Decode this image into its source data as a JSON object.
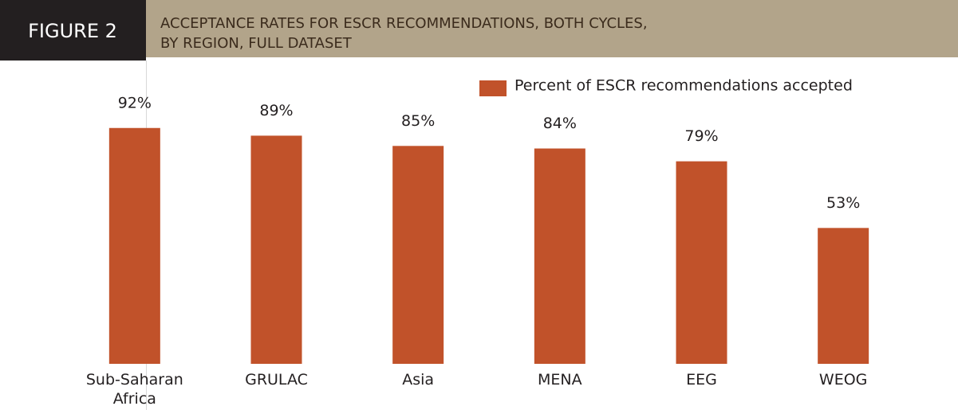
{
  "figure_label": "FIGURE 2",
  "chart_data": {
    "type": "bar",
    "title": [
      "ACCEPTANCE RATES FOR ESCR RECOMMENDATIONS, BOTH CYCLES,",
      "BY REGION, FULL DATASET"
    ],
    "categories": [
      "Sub-Saharan Africa",
      "GRULAC",
      "Asia",
      "MENA",
      "EEG",
      "WEOG"
    ],
    "series": [
      {
        "name": "Percent of ESCR recommendations accepted",
        "color": "#c1522a",
        "values": [
          92,
          89,
          85,
          84,
          79,
          53
        ],
        "value_labels": [
          "92%",
          "89%",
          "85%",
          "84%",
          "79%",
          "53%"
        ]
      }
    ],
    "ylim": [
      0,
      100
    ],
    "grid": false,
    "legend": "top-right"
  }
}
